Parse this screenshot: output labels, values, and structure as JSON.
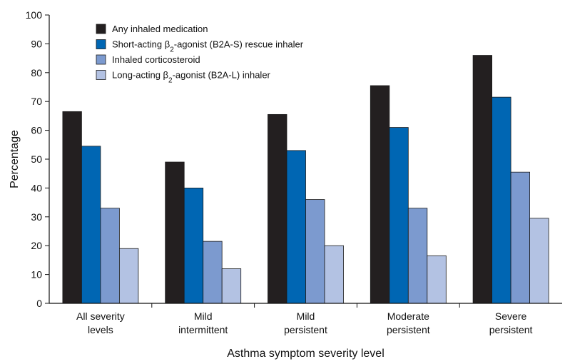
{
  "chart_data": {
    "type": "bar",
    "xlabel": "Asthma symptom severity level",
    "ylabel": "Percentage",
    "ylim": [
      0,
      100
    ],
    "yticks": [
      0,
      10,
      20,
      30,
      40,
      50,
      60,
      70,
      80,
      90,
      100
    ],
    "grid": false,
    "legend_placement": "top-left",
    "categories": [
      [
        "All severity",
        "levels"
      ],
      [
        "Mild",
        "intermittent"
      ],
      [
        "Mild",
        "persistent"
      ],
      [
        "Moderate",
        "persistent"
      ],
      [
        "Severe",
        "persistent"
      ]
    ],
    "series": [
      {
        "name": "Any inhaled medication",
        "name_parts": {
          "pre": "Any inhaled medication",
          "sub": "",
          "post": ""
        },
        "color": "#231f20",
        "values": [
          66.5,
          49,
          65.5,
          75.5,
          86
        ]
      },
      {
        "name": "Short-acting β2-agonist (B2A-S) rescue inhaler",
        "name_parts": {
          "pre": "Short-acting β",
          "sub": "2",
          "post": "-agonist (B2A-S) rescue inhaler"
        },
        "color": "#0066b3",
        "values": [
          54.5,
          40,
          53,
          61,
          71.5
        ]
      },
      {
        "name": "Inhaled corticosteroid",
        "name_parts": {
          "pre": "Inhaled corticosteroid",
          "sub": "",
          "post": ""
        },
        "color": "#7c9acf",
        "values": [
          33,
          21.5,
          36,
          33,
          45.5
        ]
      },
      {
        "name": "Long-acting β2-agonist (B2A-L) inhaler",
        "name_parts": {
          "pre": "Long-acting β",
          "sub": "2",
          "post": "-agonist (B2A-L) inhaler"
        },
        "color": "#b3c2e3",
        "values": [
          19,
          12,
          20,
          16.5,
          29.5
        ]
      }
    ]
  }
}
